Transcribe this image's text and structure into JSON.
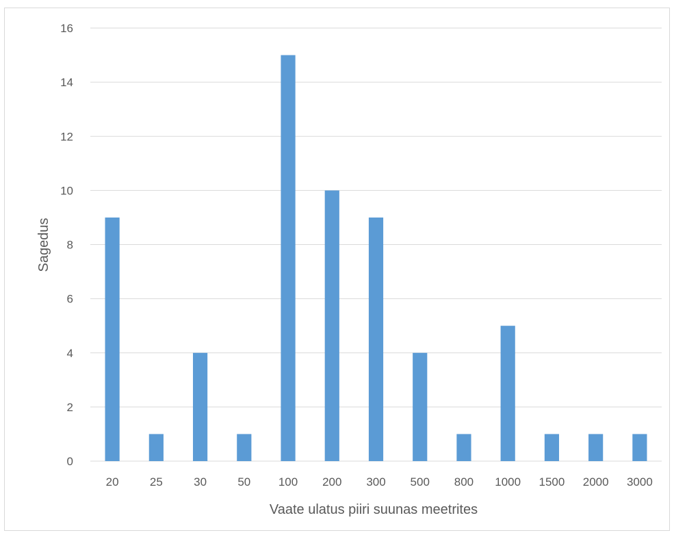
{
  "chart_data": {
    "type": "bar",
    "title": "",
    "xlabel": "Vaate ulatus piiri suunas meetrites",
    "ylabel": "Sagedus",
    "categories": [
      "20",
      "25",
      "30",
      "50",
      "100",
      "200",
      "300",
      "500",
      "800",
      "1000",
      "1500",
      "2000",
      "3000"
    ],
    "values": [
      9,
      1,
      4,
      1,
      15,
      10,
      9,
      4,
      1,
      5,
      1,
      1,
      1
    ],
    "ylim": [
      0,
      16
    ],
    "yticks": [
      0,
      2,
      4,
      6,
      8,
      10,
      12,
      14,
      16
    ],
    "grid": true,
    "legend": "none",
    "colors": {
      "bar": "#5b9bd5",
      "grid": "#d9d9d9",
      "text": "#595959",
      "border": "#d9d9d9"
    }
  }
}
